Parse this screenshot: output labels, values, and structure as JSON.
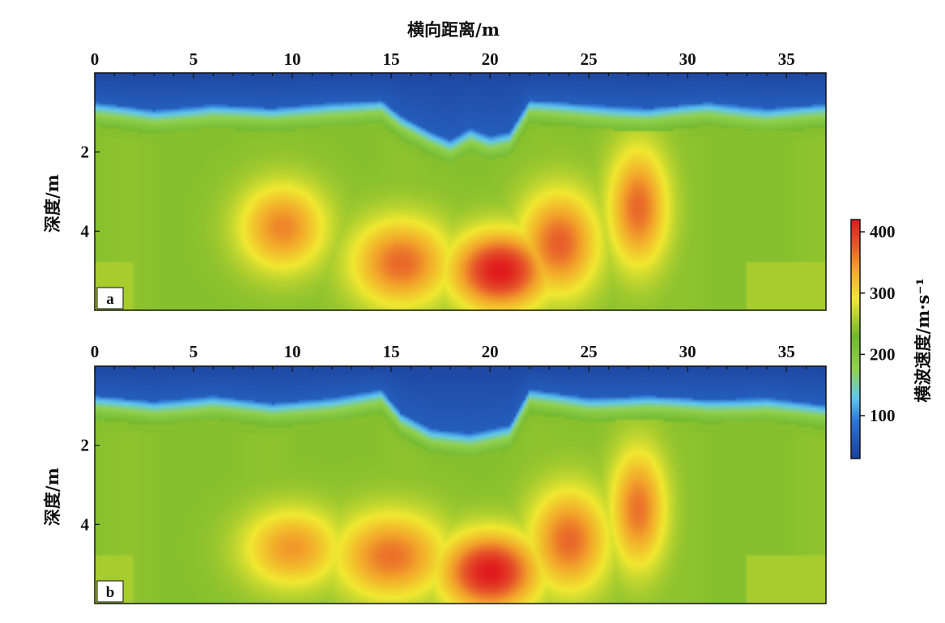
{
  "chart_data": {
    "type": "heatmap",
    "x_axis": {
      "label": "横向距离/m",
      "range": [
        0,
        37
      ],
      "ticks": [
        0,
        5,
        10,
        15,
        20,
        25,
        30,
        35
      ]
    },
    "y_axis": {
      "label": "深度/m",
      "range": [
        0,
        6
      ],
      "ticks": [
        2,
        4
      ],
      "inverted": true
    },
    "colorbar": {
      "label": "横波速度/m·s⁻¹",
      "range": [
        30,
        420
      ],
      "ticks": [
        100,
        200,
        300,
        400
      ],
      "stops": [
        {
          "v": 30,
          "color": "#1b3f9a"
        },
        {
          "v": 90,
          "color": "#2c74d4"
        },
        {
          "v": 130,
          "color": "#63c8ee"
        },
        {
          "v": 175,
          "color": "#92d150"
        },
        {
          "v": 230,
          "color": "#71b82d"
        },
        {
          "v": 290,
          "color": "#f1e830"
        },
        {
          "v": 340,
          "color": "#f2a22a"
        },
        {
          "v": 380,
          "color": "#e6542a"
        },
        {
          "v": 420,
          "color": "#df1a1d"
        }
      ]
    },
    "panels": [
      {
        "label": "a",
        "interface_depth": [
          [
            0,
            0.75
          ],
          [
            3,
            0.95
          ],
          [
            6,
            0.8
          ],
          [
            9,
            0.9
          ],
          [
            12,
            0.75
          ],
          [
            14.5,
            0.7
          ],
          [
            15.5,
            1.1
          ],
          [
            17,
            1.5
          ],
          [
            18,
            1.7
          ],
          [
            19,
            1.4
          ],
          [
            20,
            1.6
          ],
          [
            21,
            1.5
          ],
          [
            22,
            0.7
          ],
          [
            25,
            0.8
          ],
          [
            28,
            0.9
          ],
          [
            31,
            0.75
          ],
          [
            34,
            0.9
          ],
          [
            37,
            0.8
          ]
        ],
        "blobs": [
          {
            "x": 9.5,
            "y": 3.9,
            "sx": 2.2,
            "sy": 1.1,
            "v": 355
          },
          {
            "x": 15.5,
            "y": 4.8,
            "sx": 2.5,
            "sy": 1.1,
            "v": 370
          },
          {
            "x": 20.5,
            "y": 5.0,
            "sx": 2.5,
            "sy": 1.0,
            "v": 420
          },
          {
            "x": 23.5,
            "y": 4.3,
            "sx": 2.0,
            "sy": 1.3,
            "v": 375
          },
          {
            "x": 27.5,
            "y": 3.4,
            "sx": 1.5,
            "sy": 1.5,
            "v": 370
          }
        ]
      },
      {
        "label": "b",
        "interface_depth": [
          [
            0,
            0.75
          ],
          [
            3,
            0.9
          ],
          [
            6,
            0.75
          ],
          [
            9,
            0.95
          ],
          [
            12,
            0.8
          ],
          [
            14.5,
            0.6
          ],
          [
            15.5,
            1.2
          ],
          [
            17,
            1.6
          ],
          [
            19,
            1.7
          ],
          [
            21,
            1.5
          ],
          [
            22,
            0.6
          ],
          [
            25,
            0.8
          ],
          [
            28,
            0.75
          ],
          [
            31,
            0.85
          ],
          [
            34,
            0.8
          ],
          [
            37,
            1.0
          ]
        ],
        "blobs": [
          {
            "x": 10,
            "y": 4.6,
            "sx": 2.5,
            "sy": 1.0,
            "v": 345
          },
          {
            "x": 15,
            "y": 4.8,
            "sx": 2.8,
            "sy": 1.1,
            "v": 365
          },
          {
            "x": 20,
            "y": 5.2,
            "sx": 2.5,
            "sy": 1.0,
            "v": 420
          },
          {
            "x": 24,
            "y": 4.4,
            "sx": 2.0,
            "sy": 1.3,
            "v": 370
          },
          {
            "x": 27.5,
            "y": 3.6,
            "sx": 1.4,
            "sy": 1.5,
            "v": 365
          }
        ]
      }
    ]
  }
}
